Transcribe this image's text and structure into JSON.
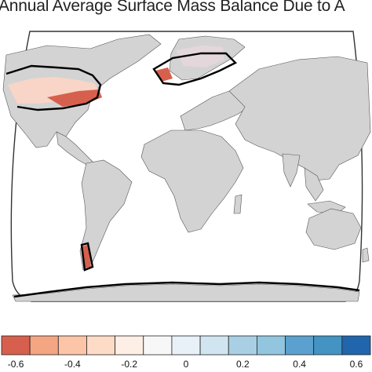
{
  "title": "Annual Average Surface Mass Balance Due to A",
  "map": {
    "projection": "Robinson",
    "land_color": "#d3d3d3",
    "ocean_color": "#ffffff",
    "ice_sheet_outline_color": "#000000"
  },
  "colorbar": {
    "colors": [
      "#d6604d",
      "#f4a582",
      "#fcc5a8",
      "#fddbc7",
      "#fdefe5",
      "#f7f7f7",
      "#e8f1f8",
      "#d1e5f0",
      "#a9cfe5",
      "#92c5de",
      "#5aa1cf",
      "#4393c3",
      "#2166ac"
    ],
    "ticks": [
      {
        "label": "-0.6",
        "value": -0.6
      },
      {
        "label": "-0.4",
        "value": -0.4
      },
      {
        "label": "-0.2",
        "value": -0.2
      },
      {
        "label": "0",
        "value": 0
      },
      {
        "label": "0.2",
        "value": 0.2
      },
      {
        "label": "0.4",
        "value": 0.4
      },
      {
        "label": "0.6",
        "value": 0.6
      }
    ]
  }
}
